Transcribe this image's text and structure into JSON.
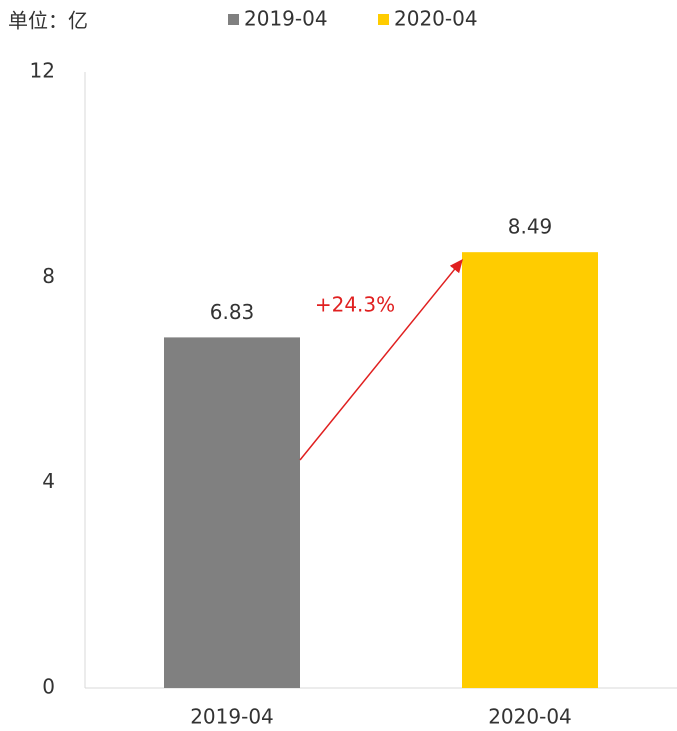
{
  "chart_data": {
    "type": "bar",
    "unit_label": "单位：亿",
    "categories": [
      "2019-04",
      "2020-04"
    ],
    "values": [
      6.83,
      8.49
    ],
    "colors": [
      "#808080",
      "#ffcc00"
    ],
    "annotation": "+24.3%",
    "annotation_color": "#e02020",
    "ylim": [
      0,
      12
    ],
    "yticks": [
      0,
      4,
      8,
      12
    ],
    "grid": false
  }
}
